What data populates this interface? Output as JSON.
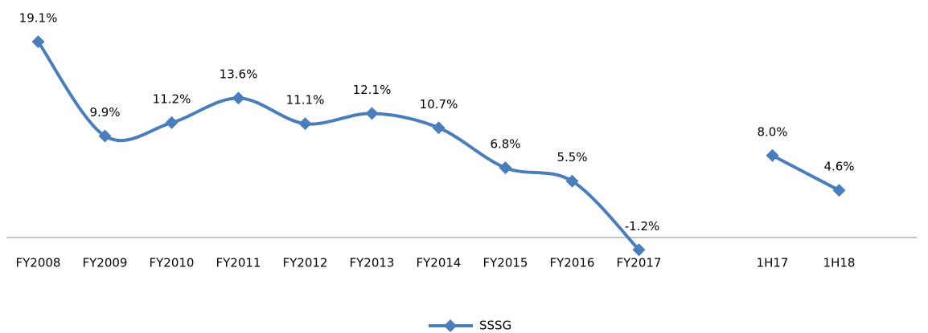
{
  "chart_data": {
    "type": "line",
    "categories": [
      "FY2008",
      "FY2009",
      "FY2010",
      "FY2011",
      "FY2012",
      "FY2013",
      "FY2014",
      "FY2015",
      "FY2016",
      "FY2017",
      null,
      "1H17",
      "1H18"
    ],
    "series": [
      {
        "name": "SSSG",
        "color": "#4a7ebb",
        "values": [
          19.1,
          9.9,
          11.2,
          13.6,
          11.1,
          12.1,
          10.7,
          6.8,
          5.5,
          -1.2,
          null,
          8.0,
          4.6
        ],
        "value_labels": [
          "19.1%",
          "9.9%",
          "11.2%",
          "13.6%",
          "11.1%",
          "12.1%",
          "10.7%",
          "6.8%",
          "5.5%",
          "-1.2%",
          null,
          "8.0%",
          "4.6%"
        ]
      }
    ],
    "ylim": [
      -2,
      20
    ],
    "legend": "bottom"
  }
}
